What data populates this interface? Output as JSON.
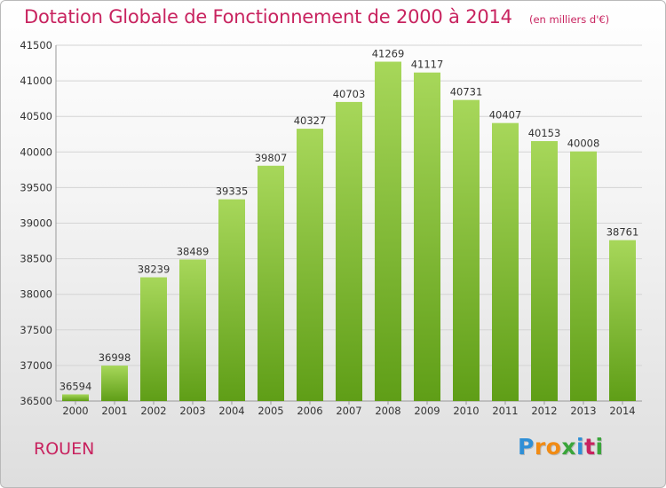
{
  "header": {
    "title": "Dotation Globale de Fonctionnement de 2000 à 2014",
    "subtitle": "(en milliers d'€)"
  },
  "footer": {
    "city": "ROUEN",
    "brand": {
      "letters": [
        "P",
        "r",
        "o",
        "x",
        "i",
        "t",
        "i"
      ],
      "colors": [
        "#2f8fd6",
        "#f18b14",
        "#f18b14",
        "#3aa53a",
        "#2f8fd6",
        "#c8235f",
        "#3aa53a"
      ]
    }
  },
  "colors": {
    "title": "#c8235f",
    "bar_top": "#a7d75a",
    "bar_bottom": "#5f9e17",
    "grid": "#d4d4d4",
    "axis": "#999999",
    "text": "#333333"
  },
  "chart_data": {
    "type": "bar",
    "title": "Dotation Globale de Fonctionnement de 2000 à 2014",
    "subtitle": "(en milliers d'€)",
    "xlabel": "",
    "ylabel": "",
    "categories": [
      "2000",
      "2001",
      "2002",
      "2003",
      "2004",
      "2005",
      "2006",
      "2007",
      "2008",
      "2009",
      "2010",
      "2011",
      "2012",
      "2013",
      "2014"
    ],
    "values": [
      36594,
      36998,
      38239,
      38489,
      39335,
      39807,
      40327,
      40703,
      41269,
      41117,
      40731,
      40407,
      40153,
      40008,
      38761
    ],
    "ylim": [
      36500,
      41500
    ],
    "yticks": [
      36500,
      37000,
      37500,
      38000,
      38500,
      39000,
      39500,
      40000,
      40500,
      41000,
      41500
    ],
    "grid": true,
    "legend": "none"
  }
}
